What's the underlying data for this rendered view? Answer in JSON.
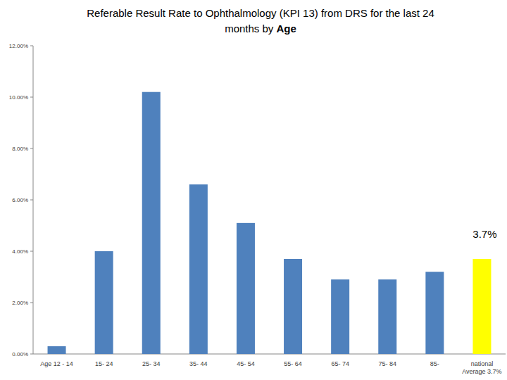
{
  "chart_data": {
    "type": "bar",
    "title": "Referable Result Rate to Ophthalmology (KPI 13) from DRS for the last 24 months by Age",
    "categories": [
      "Age 12 - 14",
      "15- 24",
      "25- 34",
      "35- 44",
      "45- 54",
      "55- 64",
      "65- 74",
      "75- 84",
      "85-",
      "national Average 3.7%"
    ],
    "values": [
      0.3,
      4.0,
      10.2,
      6.6,
      5.1,
      3.7,
      2.9,
      2.9,
      3.2,
      3.7
    ],
    "colors": [
      "#4f81bd",
      "#4f81bd",
      "#4f81bd",
      "#4f81bd",
      "#4f81bd",
      "#4f81bd",
      "#4f81bd",
      "#4f81bd",
      "#4f81bd",
      "#ffff00"
    ],
    "data_labels": true,
    "value_labels": [
      null,
      null,
      null,
      null,
      null,
      null,
      null,
      null,
      null,
      "3.7%"
    ],
    "ylim": [
      0,
      12
    ],
    "yticks": [
      {
        "value": 0,
        "label": "0.00%"
      },
      {
        "value": 2,
        "label": "2.00%"
      },
      {
        "value": 4,
        "label": "4.00%"
      },
      {
        "value": 6,
        "label": "6.00%"
      },
      {
        "value": 8,
        "label": "8.00%"
      },
      {
        "value": 10,
        "label": "10.00%"
      },
      {
        "value": 12,
        "label": "12.00%"
      }
    ],
    "grid": false
  }
}
